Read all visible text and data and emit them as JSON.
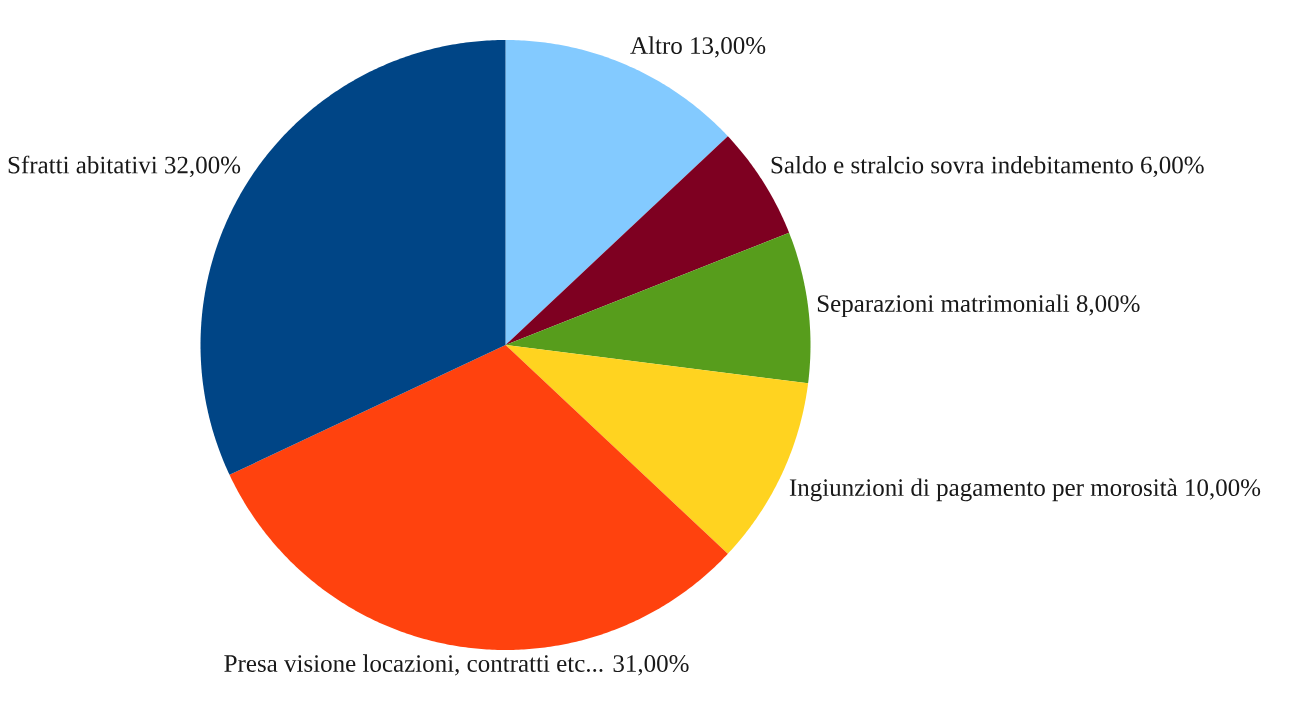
{
  "chart_data": {
    "type": "pie",
    "categories": [
      "Altro",
      "Saldo e stralcio sovra indebitamento",
      "Separazioni matrimoniali",
      "Ingiunzioni di pagamento per morosità",
      "Presa visione locazioni, contratti etc...",
      "Sfratti abitativi"
    ],
    "values": [
      13,
      6,
      8,
      10,
      31,
      32
    ],
    "value_labels": [
      "13,00%",
      "6,00%",
      "8,00%",
      "10,00%",
      "31,00%",
      "32,00%"
    ],
    "colors": [
      "#83caff",
      "#7e0021",
      "#579d1c",
      "#ffd320",
      "#ff420e",
      "#004586"
    ]
  }
}
